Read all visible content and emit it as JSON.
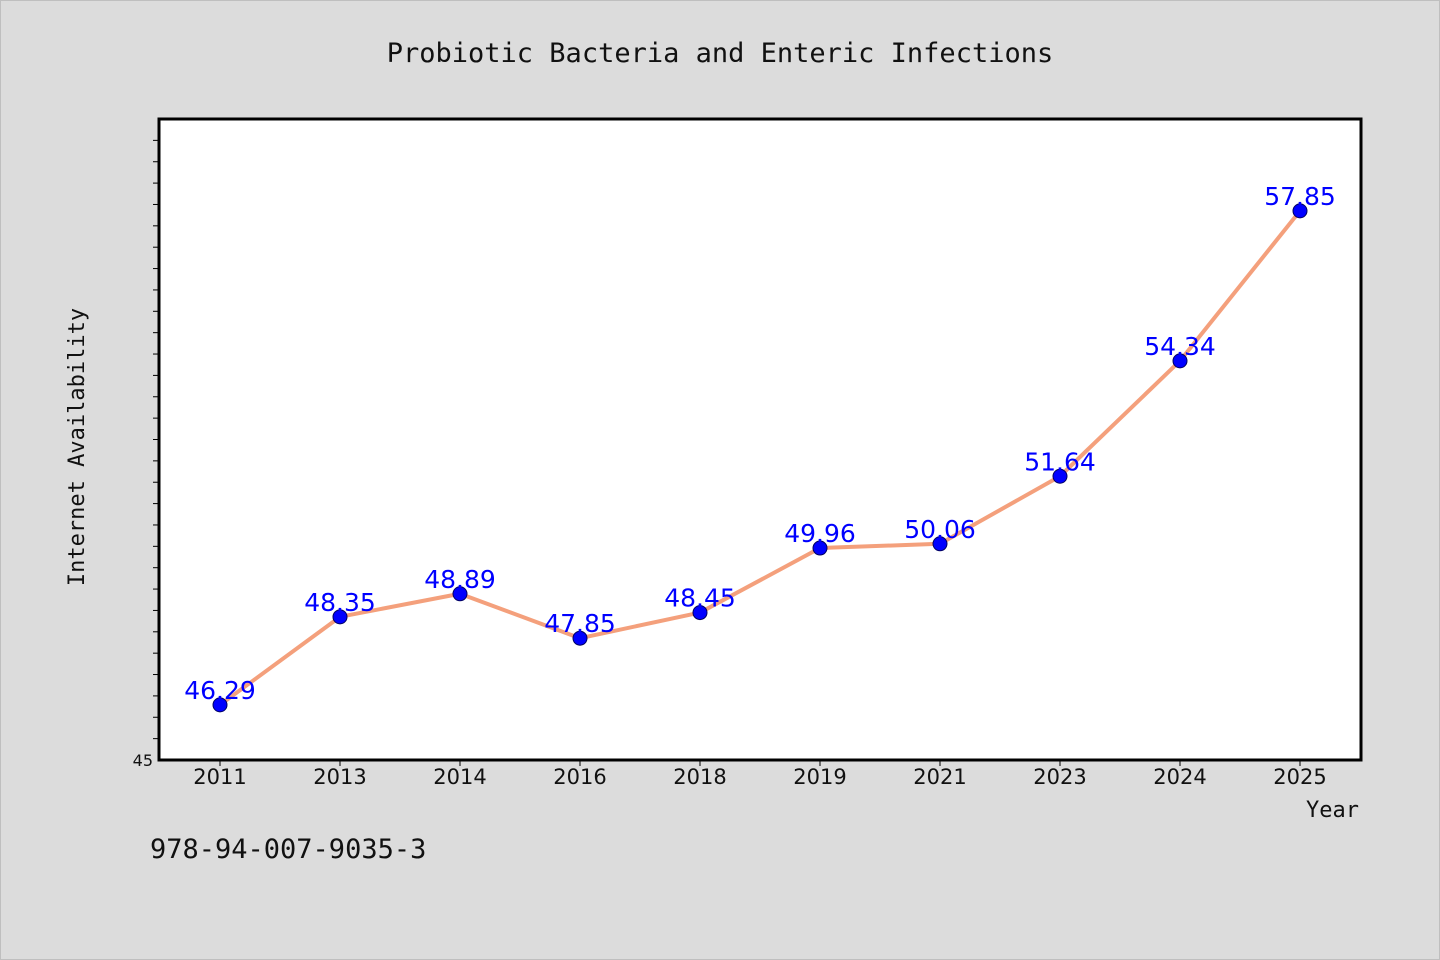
{
  "chart_data": {
    "type": "line",
    "title": "Probiotic Bacteria and Enteric Infections",
    "xlabel": "Year",
    "ylabel": "Internet Availability",
    "categories": [
      "2011",
      "2013",
      "2014",
      "2016",
      "2018",
      "2019",
      "2021",
      "2023",
      "2024",
      "2025"
    ],
    "series": [
      {
        "values": [
          46.29,
          48.35,
          48.89,
          47.85,
          48.45,
          49.96,
          50.06,
          51.64,
          54.34,
          57.85
        ],
        "data_labels": [
          "46.29",
          "48.35",
          "48.89",
          "47.85",
          "48.45",
          "49.96",
          "50.06",
          "51.64",
          "54.34",
          "57.85"
        ]
      }
    ],
    "ylim": [
      45,
      60
    ],
    "y_tick_labels": [
      "45"
    ],
    "grid": false,
    "legend": "none",
    "line_color": "#f4a07c",
    "marker_color": "#0000ff",
    "label_color": "#0000ff"
  },
  "caption": "978-94-007-9035-3"
}
